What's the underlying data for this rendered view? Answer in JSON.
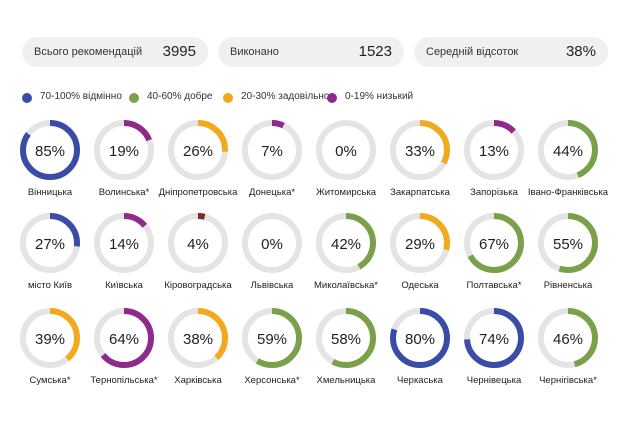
{
  "stats": [
    {
      "label": "Всього рекомендацій",
      "value": "3995"
    },
    {
      "label": "Виконано",
      "value": "1523"
    },
    {
      "label": "Середній відсоток",
      "value": "38%"
    }
  ],
  "legend": [
    {
      "label": "70-100% відмінно",
      "color": "#3b4ba8"
    },
    {
      "label": "40-60% добре",
      "color": "#7aa04a"
    },
    {
      "label": "20-30% задовільно",
      "color": "#f2a91e"
    },
    {
      "label": "0-19% низький",
      "color": "#8e2a8c"
    }
  ],
  "colors": {
    "track": "#e4e4e4",
    "cat_min": "#7a2a2a"
  },
  "chart_data": {
    "type": "donut-grid",
    "unit": "%",
    "items": [
      {
        "name": "Вінницька",
        "value": 85,
        "color": "#3b4ba8"
      },
      {
        "name": "Волинська*",
        "value": 19,
        "color": "#8e2a8c"
      },
      {
        "name": "Дніпропетровська",
        "value": 26,
        "color": "#f2a91e"
      },
      {
        "name": "Донецька*",
        "value": 7,
        "color": "#8e2a8c"
      },
      {
        "name": "Житомирська",
        "value": 0,
        "color": "#8e2a8c"
      },
      {
        "name": "Закарпатська",
        "value": 33,
        "color": "#f2a91e"
      },
      {
        "name": "Запорізька",
        "value": 13,
        "color": "#8e2a8c"
      },
      {
        "name": "Івано-Франківська",
        "value": 44,
        "color": "#7aa04a"
      },
      {
        "name": "місто Київ",
        "value": 27,
        "color": "#3b4ba8"
      },
      {
        "name": "Київська",
        "value": 14,
        "color": "#8e2a8c"
      },
      {
        "name": "Кіровоградська",
        "value": 4,
        "color": "#7a2a2a"
      },
      {
        "name": "Львівська",
        "value": 0,
        "color": "#8e2a8c"
      },
      {
        "name": "Миколаївська*",
        "value": 42,
        "color": "#7aa04a"
      },
      {
        "name": "Одеська",
        "value": 29,
        "color": "#f2a91e"
      },
      {
        "name": "Полтавська*",
        "value": 67,
        "color": "#7aa04a"
      },
      {
        "name": "Рівненська",
        "value": 55,
        "color": "#7aa04a"
      },
      {
        "name": "Сумська*",
        "value": 39,
        "color": "#f2a91e"
      },
      {
        "name": "Тернопільська*",
        "value": 64,
        "color": "#8e2a8c"
      },
      {
        "name": "Харківська",
        "value": 38,
        "color": "#f2a91e"
      },
      {
        "name": "Херсонська*",
        "value": 59,
        "color": "#7aa04a"
      },
      {
        "name": "Хмельницька",
        "value": 58,
        "color": "#7aa04a"
      },
      {
        "name": "Черкаська",
        "value": 80,
        "color": "#3b4ba8"
      },
      {
        "name": "Чернівецька",
        "value": 74,
        "color": "#3b4ba8"
      },
      {
        "name": "Чернігівська*",
        "value": 46,
        "color": "#7aa04a"
      }
    ]
  }
}
